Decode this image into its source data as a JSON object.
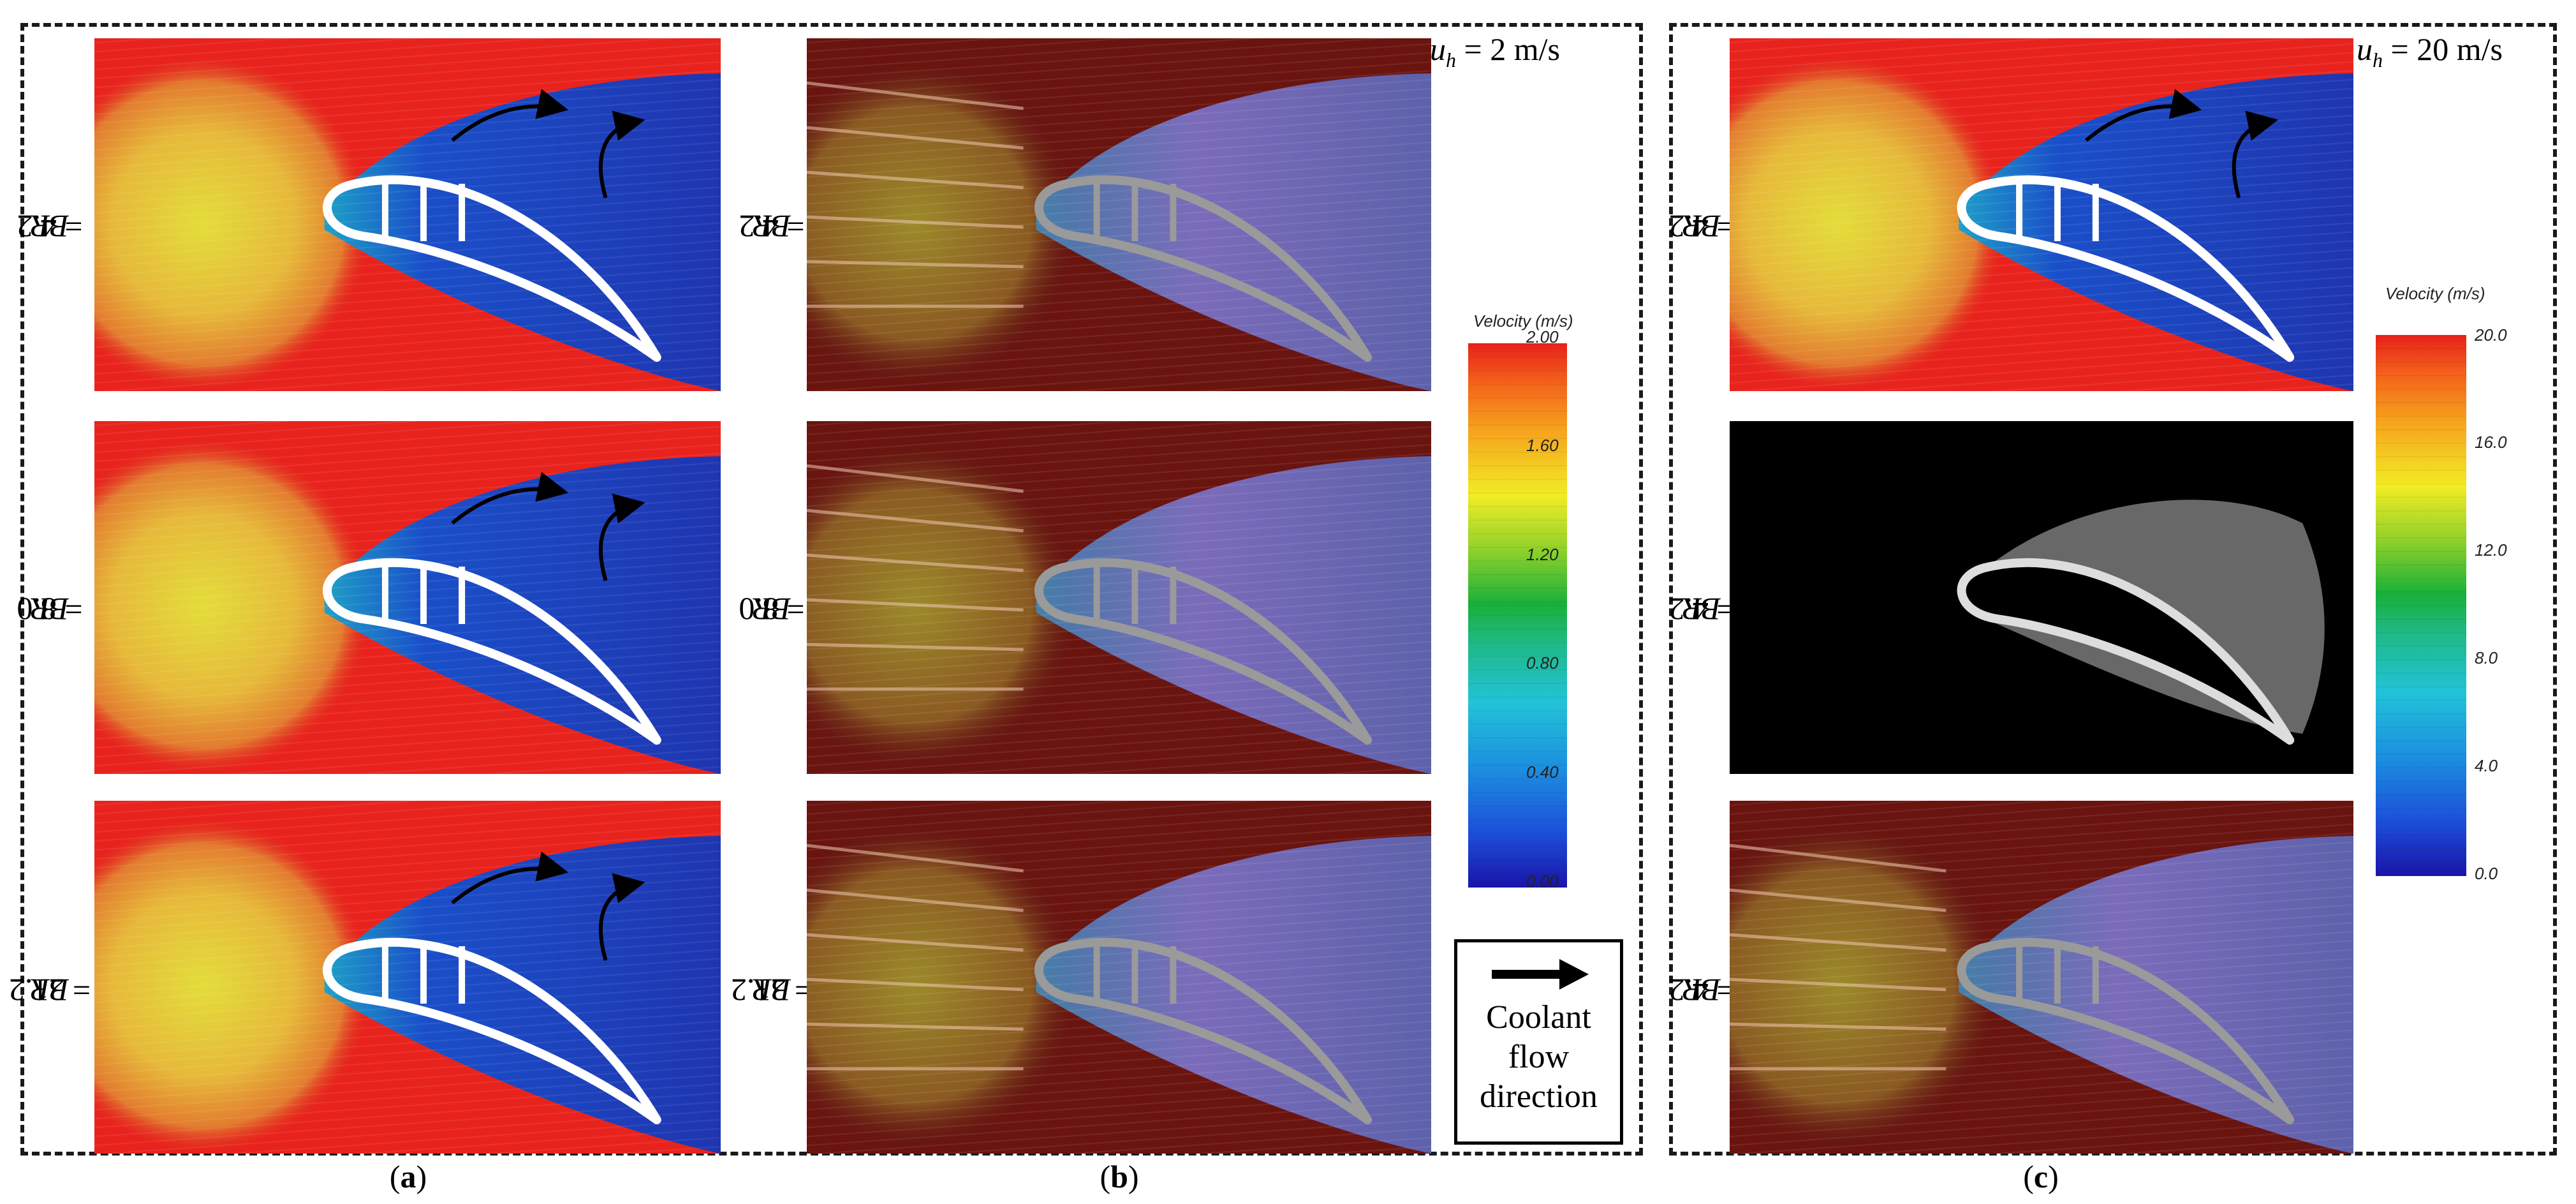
{
  "panel_a": {
    "caption": "(a)",
    "caption_letter": "a",
    "rows": [
      {
        "label_var": "BR",
        "label_value": " = 4.2"
      },
      {
        "label_var": "BR",
        "label_value": " = 8.0"
      },
      {
        "label_var": "BR",
        "label_value": " = 21.2"
      }
    ]
  },
  "panel_b": {
    "caption": "(b)",
    "caption_letter": "b",
    "speed_var": "u",
    "speed_sub": "h",
    "speed_value": " = 2 m/s",
    "rows": [
      {
        "label_var": "BR",
        "label_value": " = 4.2"
      },
      {
        "label_var": "BR",
        "label_value": " = 8.0"
      },
      {
        "label_var": "BR",
        "label_value": " = 21.2"
      }
    ],
    "colorbar": {
      "title": "Velocity (m/s)",
      "ticks": [
        "2.00",
        "1.60",
        "1.20",
        "0.80",
        "0.40",
        "0.00"
      ]
    },
    "legend": {
      "icon": "right-arrow-icon",
      "lines": [
        "Coolant",
        "flow",
        "direction"
      ]
    }
  },
  "panel_c": {
    "caption": "(c)",
    "caption_letter": "c",
    "speed_var": "u",
    "speed_sub": "h",
    "speed_value": " = 20 m/s",
    "rows": [
      {
        "label_var": "BR",
        "label_value": " = 4.2"
      },
      {
        "label_var": "BR",
        "label_value": " = 4.2"
      },
      {
        "label_var": "BR",
        "label_value": " = 4.2"
      }
    ],
    "colorbar": {
      "title": "Velocity (m/s)",
      "ticks": [
        "20.0",
        "16.0",
        "12.0",
        "8.0",
        "4.0",
        "0.0"
      ]
    }
  },
  "colors": {
    "high": "#e8231d",
    "mid_high": "#f5c423",
    "mid": "#19b23c",
    "mid_low": "#17aede",
    "low": "#1425b8"
  }
}
